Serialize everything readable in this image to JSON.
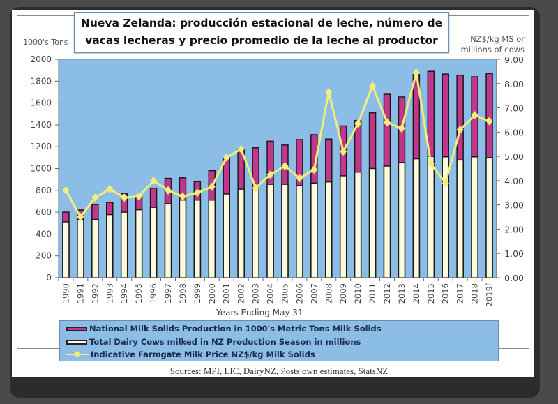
{
  "title": "Nueva Zelanda: producción estacional de leche, número de vacas lecheras y precio promedio de la leche al productor",
  "title_lines": [
    "Nueva Zelanda: producción estacional de leche, número de",
    "vacas lecheras y precio promedio de la leche al productor"
  ],
  "sources": "Sources: MPI, LIC, DairyNZ, Posts own estimates, StatsNZ",
  "colors": {
    "plot_bg": "#8bbde6",
    "milk_solids": "#c2378c",
    "cows": "#fffadc",
    "price_line": "#f2ee7a"
  },
  "chart_data": {
    "type": "bar",
    "title": "Nueva Zelanda: producción estacional de leche, número de vacas lecheras y precio promedio de la leche al productor",
    "xlabel": "Years Ending May 31",
    "ylabel_left": "1000's Tons",
    "ylabel_right_lines": [
      "NZ$/kg MS or",
      "millions of cows"
    ],
    "ylim_left": [
      0,
      2000
    ],
    "ylim_right": [
      0,
      9
    ],
    "yticks_left": [
      "0",
      "200",
      "400",
      "600",
      "800",
      "1000",
      "1200",
      "1400",
      "1600",
      "1800",
      "2000"
    ],
    "yticks_right": [
      "0.00",
      "1.00",
      "2.00",
      "3.00",
      "4.00",
      "5.00",
      "6.00",
      "7.00",
      "8.00",
      "9.00"
    ],
    "categories": [
      "1990",
      "1991",
      "1992",
      "1993",
      "1994",
      "1995",
      "1996",
      "1997",
      "1998",
      "1999",
      "2000",
      "2001",
      "2002",
      "2003",
      "2004",
      "2005",
      "2006",
      "2007",
      "2008",
      "2009",
      "2010",
      "2011",
      "2012",
      "2013",
      "2014",
      "2015",
      "2016",
      "2017",
      "2018",
      "2019f"
    ],
    "grid": false,
    "legend_position": "bottom",
    "series": [
      {
        "name": "National Milk Solids Production in 1000's Metric Tons Milk Solids",
        "type": "bar",
        "axis": "left",
        "values": [
          600,
          620,
          670,
          690,
          770,
          740,
          820,
          910,
          915,
          880,
          980,
          1100,
          1170,
          1190,
          1250,
          1215,
          1265,
          1310,
          1270,
          1390,
          1440,
          1510,
          1680,
          1655,
          1860,
          1890,
          1865,
          1855,
          1840,
          1870
        ]
      },
      {
        "name": "Total Dairy Cows milked in  NZ Production Season in millions",
        "type": "bar",
        "axis": "right",
        "values": [
          2.3,
          2.4,
          2.4,
          2.6,
          2.7,
          2.8,
          2.9,
          3.05,
          3.2,
          3.2,
          3.2,
          3.45,
          3.65,
          3.75,
          3.85,
          3.85,
          3.8,
          3.9,
          3.95,
          4.2,
          4.35,
          4.5,
          4.6,
          4.75,
          4.9,
          5.0,
          4.98,
          4.85,
          4.98,
          4.95
        ]
      },
      {
        "name": "Indicative Farmgate Milk Price NZ$/kg Milk Solids",
        "type": "line",
        "axis": "right",
        "values": [
          3.6,
          2.5,
          3.3,
          3.65,
          3.3,
          3.35,
          4.0,
          3.6,
          3.35,
          3.5,
          3.75,
          4.95,
          5.3,
          3.7,
          4.25,
          4.6,
          4.1,
          4.45,
          7.65,
          5.2,
          6.35,
          7.9,
          6.4,
          6.15,
          8.45,
          4.7,
          3.9,
          6.1,
          6.7,
          6.45
        ]
      }
    ]
  }
}
